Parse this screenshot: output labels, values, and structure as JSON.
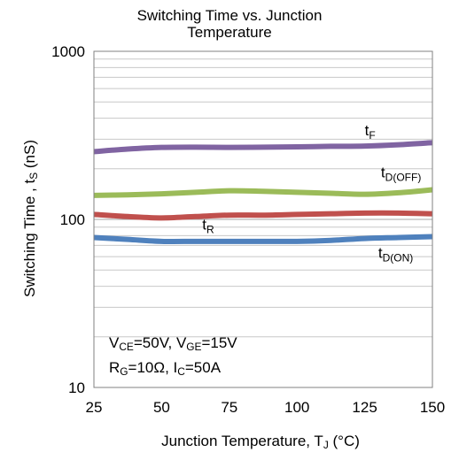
{
  "chart_data": {
    "type": "line",
    "title": [
      "Switching Time vs. Junction",
      "Temperature"
    ],
    "xlabel": {
      "main": "Junction Temperature, T",
      "sub": "J",
      "tail": " (°C)"
    },
    "ylabel": {
      "main": "Switching Time , t",
      "sub": "S",
      "tail": " (nS)"
    },
    "xlim": [
      25,
      150
    ],
    "ylim": [
      10,
      1000
    ],
    "yscale": "log",
    "xticks": [
      25,
      50,
      75,
      100,
      125,
      150
    ],
    "yticks": [
      10,
      100,
      1000
    ],
    "grid": true,
    "series": [
      {
        "name": "t_F",
        "label_main": "t",
        "label_sub": "F",
        "color": "#8064A2",
        "x": [
          25,
          37.5,
          50,
          62.5,
          75,
          87.5,
          100,
          112.5,
          125,
          137.5,
          150
        ],
        "y": [
          253,
          262,
          268,
          269,
          268,
          269,
          270,
          272,
          273,
          278,
          286
        ]
      },
      {
        "name": "t_D(OFF)",
        "label_main": "t",
        "label_sub": "D(OFF)",
        "color": "#9BBB59",
        "x": [
          25,
          37.5,
          50,
          62.5,
          75,
          87.5,
          100,
          112.5,
          125,
          137.5,
          150
        ],
        "y": [
          139,
          140,
          142,
          145,
          148,
          147,
          145,
          143,
          141,
          144,
          150
        ]
      },
      {
        "name": "t_R",
        "label_main": "t",
        "label_sub": "R",
        "color": "#C0504D",
        "x": [
          25,
          37.5,
          50,
          62.5,
          75,
          87.5,
          100,
          112.5,
          125,
          137.5,
          150
        ],
        "y": [
          107,
          104,
          102,
          104,
          106,
          106,
          107,
          108,
          109,
          109,
          108
        ]
      },
      {
        "name": "t_D(ON)",
        "label_main": "t",
        "label_sub": "D(ON)",
        "color": "#4F81BD",
        "x": [
          25,
          37.5,
          50,
          62.5,
          75,
          87.5,
          100,
          112.5,
          125,
          137.5,
          150
        ],
        "y": [
          78,
          76,
          74,
          74,
          74,
          74,
          74,
          75,
          77,
          78,
          79
        ]
      }
    ],
    "conditions": {
      "line1": [
        {
          "main": "V",
          "sub": "CE",
          "tail": "=50V, "
        },
        {
          "main": "V",
          "sub": "GE",
          "tail": "=15V"
        }
      ],
      "line2": [
        {
          "main": "R",
          "sub": "G",
          "tail": "=10Ω, "
        },
        {
          "main": "I",
          "sub": "C",
          "tail": "=50A"
        }
      ]
    }
  }
}
